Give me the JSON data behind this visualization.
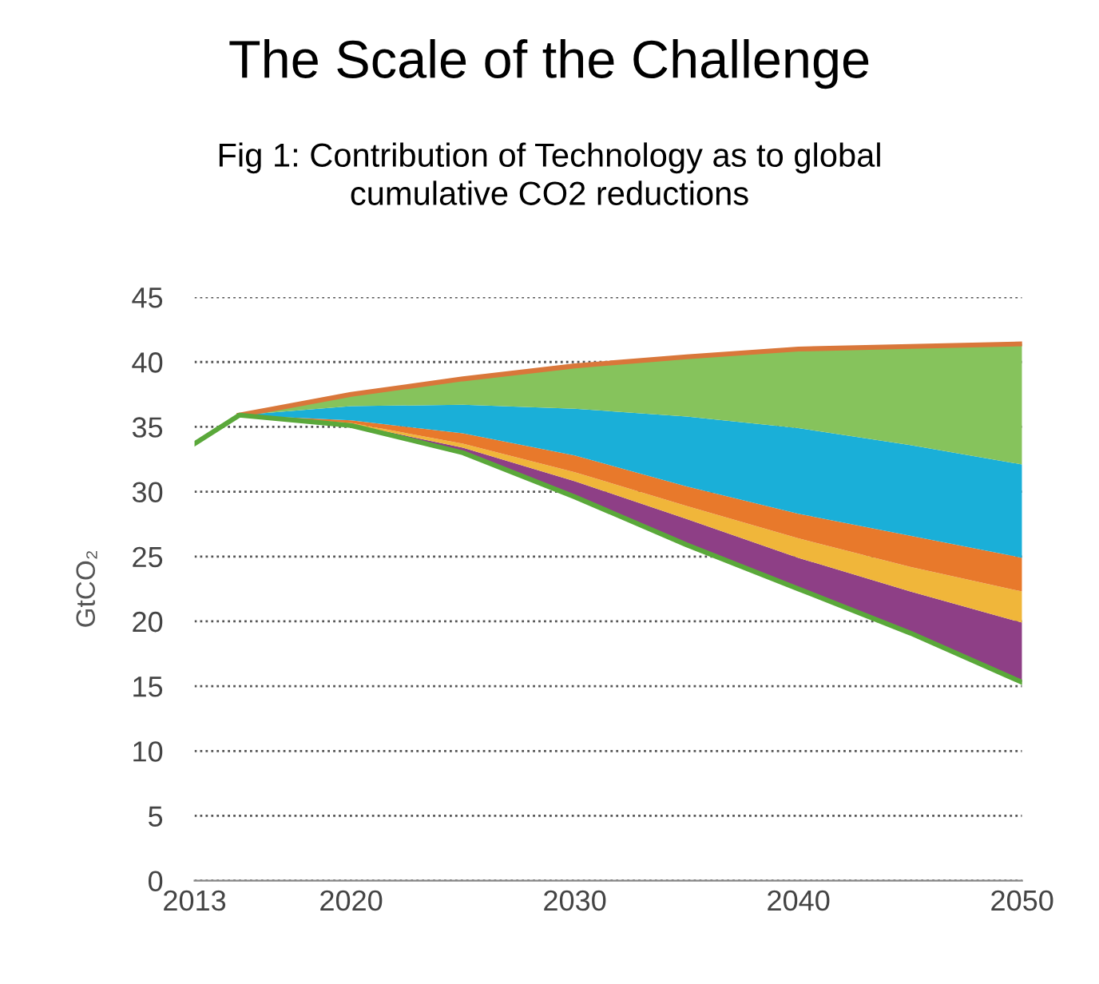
{
  "chart_data": {
    "type": "area",
    "title": "The Scale of the Challenge",
    "subtitle": "Fig 1: Contribution of Technology as to global\ncumulative CO2 reductions",
    "ylabel": "GtCO₂",
    "x": [
      2015,
      2020,
      2025,
      2030,
      2035,
      2040,
      2045,
      2050
    ],
    "series": [
      {
        "type": "line",
        "color": "#d9773a",
        "values": [
          35.9,
          37.5,
          38.7,
          39.7,
          40.4,
          41.0,
          41.2,
          41.4
        ]
      },
      {
        "type": "line",
        "color": "#5aa83a",
        "x": [
          2013,
          2015,
          2020,
          2025,
          2030,
          2035,
          2040,
          2045,
          2050
        ],
        "values": [
          33.7,
          35.9,
          35.1,
          33.0,
          29.6,
          25.9,
          22.5,
          19.1,
          15.3
        ]
      },
      {
        "color": "#8e3f86",
        "values": [
          35.9,
          35.2,
          33.4,
          30.8,
          27.9,
          24.9,
          22.3,
          19.9
        ]
      },
      {
        "color": "#f0b63a",
        "values": [
          35.9,
          35.3,
          33.7,
          31.5,
          28.9,
          26.4,
          24.2,
          22.3
        ]
      },
      {
        "color": "#e8792b",
        "values": [
          35.9,
          35.5,
          34.5,
          32.8,
          30.4,
          28.3,
          26.6,
          24.9
        ]
      },
      {
        "color": "#1aafd8",
        "values": [
          35.9,
          36.6,
          36.7,
          36.4,
          35.8,
          34.9,
          33.6,
          32.1
        ]
      },
      {
        "color": "#86c35c",
        "values": [
          35.9,
          37.5,
          38.7,
          39.7,
          40.4,
          41.0,
          41.2,
          41.4
        ]
      }
    ],
    "xlim": [
      2013,
      2050
    ],
    "xticks": [
      2013,
      2020,
      2030,
      2040,
      2050
    ],
    "ylim": [
      0,
      45
    ],
    "yticks": [
      0,
      5,
      10,
      15,
      20,
      25,
      30,
      35,
      40,
      45
    ],
    "grid": "y",
    "line_style": "solid"
  }
}
